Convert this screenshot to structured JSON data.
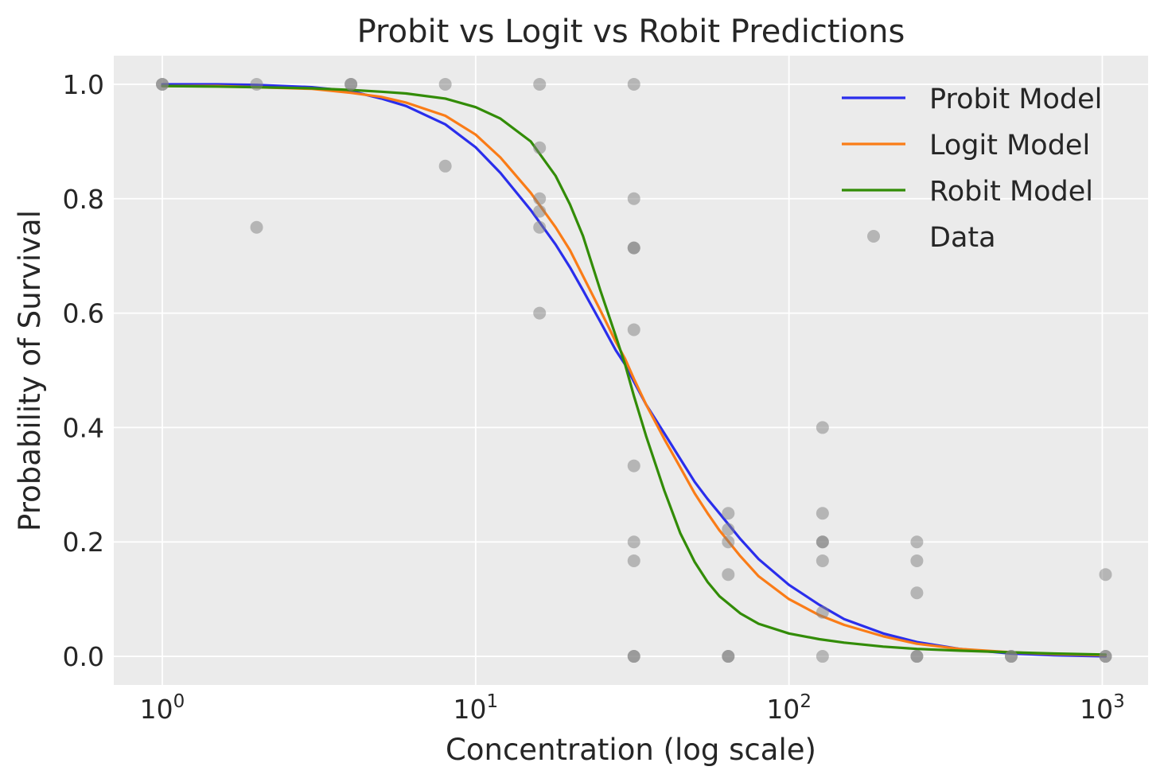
{
  "chart_data": {
    "type": "line",
    "title": "Probit vs Logit vs Robit Predictions",
    "xlabel": "Concentration (log scale)",
    "ylabel": "Probability of Survival",
    "xscale": "log",
    "xlim": [
      0.7,
      1400
    ],
    "ylim": [
      -0.05,
      1.05
    ],
    "grid": true,
    "legend_position": "top-right",
    "background": "#ebebeb",
    "x_ticks": [
      {
        "value": 1,
        "base": "10",
        "exp": "0"
      },
      {
        "value": 10,
        "base": "10",
        "exp": "1"
      },
      {
        "value": 100,
        "base": "10",
        "exp": "2"
      },
      {
        "value": 1000,
        "base": "10",
        "exp": "3"
      }
    ],
    "y_ticks": [
      {
        "value": 0.0,
        "label": "0.0"
      },
      {
        "value": 0.2,
        "label": "0.2"
      },
      {
        "value": 0.4,
        "label": "0.4"
      },
      {
        "value": 0.6,
        "label": "0.6"
      },
      {
        "value": 0.8,
        "label": "0.8"
      },
      {
        "value": 1.0,
        "label": "1.0"
      }
    ],
    "x": [
      1,
      1.5,
      2,
      3,
      4,
      5,
      6,
      8,
      10,
      12,
      15,
      18,
      20,
      22,
      25,
      28,
      30,
      32,
      35,
      40,
      45,
      50,
      55,
      60,
      70,
      80,
      100,
      125,
      150,
      200,
      256,
      350,
      512,
      700,
      1024
    ],
    "series": [
      {
        "name": "Probit Model",
        "color": "#2a2eec",
        "values": [
          1.0,
          1.0,
          0.999,
          0.995,
          0.988,
          0.975,
          0.962,
          0.93,
          0.89,
          0.845,
          0.78,
          0.72,
          0.68,
          0.64,
          0.585,
          0.535,
          0.51,
          0.48,
          0.44,
          0.39,
          0.345,
          0.305,
          0.275,
          0.25,
          0.205,
          0.17,
          0.125,
          0.09,
          0.065,
          0.04,
          0.025,
          0.013,
          0.005,
          0.002,
          0.0
        ]
      },
      {
        "name": "Logit Model",
        "color": "#fa7c17",
        "values": [
          0.997,
          0.997,
          0.995,
          0.992,
          0.985,
          0.978,
          0.968,
          0.945,
          0.912,
          0.872,
          0.81,
          0.75,
          0.71,
          0.665,
          0.605,
          0.55,
          0.52,
          0.485,
          0.44,
          0.38,
          0.33,
          0.285,
          0.25,
          0.22,
          0.175,
          0.14,
          0.1,
          0.072,
          0.055,
          0.035,
          0.022,
          0.013,
          0.007,
          0.004,
          0.002
        ]
      },
      {
        "name": "Robit Model",
        "color": "#328c06",
        "values": [
          0.997,
          0.996,
          0.995,
          0.993,
          0.99,
          0.987,
          0.984,
          0.975,
          0.96,
          0.94,
          0.9,
          0.84,
          0.79,
          0.735,
          0.64,
          0.56,
          0.51,
          0.455,
          0.385,
          0.29,
          0.215,
          0.165,
          0.13,
          0.105,
          0.075,
          0.057,
          0.04,
          0.03,
          0.024,
          0.017,
          0.013,
          0.01,
          0.007,
          0.005,
          0.003
        ]
      }
    ],
    "scatter": {
      "name": "Data",
      "color": "#7f7f7f",
      "x": [
        1,
        1,
        2,
        2,
        4,
        4,
        8,
        8,
        16,
        16,
        16,
        16,
        16,
        16,
        32,
        32,
        32,
        32,
        32,
        32,
        32,
        32,
        32,
        32,
        64,
        64,
        64,
        64,
        64,
        64,
        128,
        128,
        128,
        128,
        128,
        128,
        128,
        256,
        256,
        256,
        256,
        256,
        512,
        512,
        1024,
        1024,
        1024
      ],
      "y": [
        1.0,
        1.0,
        1.0,
        0.75,
        1.0,
        1.0,
        1.0,
        0.857,
        1.0,
        0.889,
        0.8,
        0.778,
        0.75,
        0.6,
        1.0,
        0.8,
        0.714,
        0.714,
        0.571,
        0.333,
        0.2,
        0.167,
        0.0,
        0.0,
        0.25,
        0.222,
        0.2,
        0.143,
        0.0,
        0.0,
        0.4,
        0.25,
        0.2,
        0.2,
        0.167,
        0.077,
        0.0,
        0.2,
        0.167,
        0.111,
        0.0,
        0.0,
        0.0,
        0.0,
        0.143,
        0.0,
        0.0
      ]
    }
  }
}
